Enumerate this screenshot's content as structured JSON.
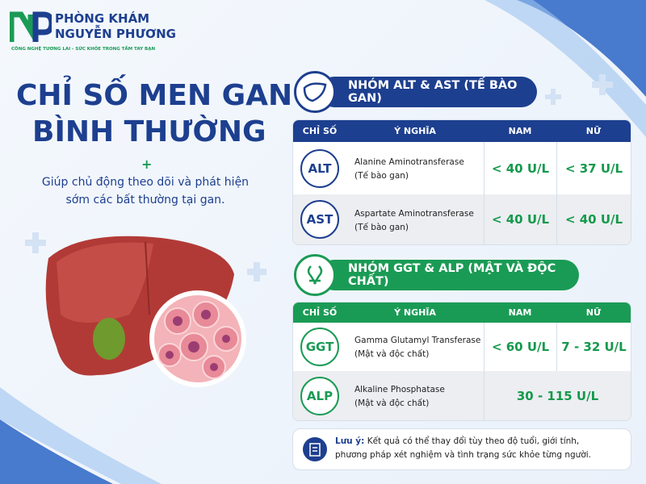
{
  "logo": {
    "line1": "PHÒNG KHÁM",
    "line2": "NGUYỄN PHƯƠNG",
    "tagline": "CÔNG NGHỆ TƯƠNG LAI - SỨC KHỎE TRONG TẦM TAY BẠN"
  },
  "title": {
    "line1": "CHỈ SỐ MEN GAN",
    "line2": "BÌNH THƯỜNG"
  },
  "subtitle": {
    "line1": "Giúp chủ động theo dõi và phát hiện",
    "line2": "sớm các bất thường tại gan."
  },
  "groups": [
    {
      "title": "NHÓM ALT & AST (TẾ BÀO GAN)",
      "headers": [
        "CHỈ SỐ",
        "Ý NGHĨA",
        "NAM",
        "NỮ"
      ],
      "rows": [
        {
          "code": "ALT",
          "name": "Alanine Aminotransferase",
          "note": "(Tế bào gan)",
          "male": "< 40 U/L",
          "female": "< 37 U/L"
        },
        {
          "code": "AST",
          "name": "Aspartate Aminotransferase",
          "note": "(Tế bào gan)",
          "male": "< 40 U/L",
          "female": "< 40 U/L"
        }
      ]
    },
    {
      "title": "NHÓM GGT & ALP (MẬT VÀ ĐỘC CHẤT)",
      "headers": [
        "CHỈ SỐ",
        "Ý NGHĨA",
        "NAM",
        "NỮ"
      ],
      "rows": [
        {
          "code": "GGT",
          "name": "Gamma Glutamyl Transferase",
          "note": "(Mật và độc chất)",
          "male": "< 60 U/L",
          "female": "7 - 32 U/L"
        },
        {
          "code": "ALP",
          "name": "Alkaline Phosphatase",
          "note": "(Mật và độc chất)",
          "both": "30 - 115 U/L"
        }
      ]
    }
  ],
  "note": {
    "label": "Lưu ý:",
    "line1": "Kết quả có thể thay đổi tùy theo độ tuổi, giới tính,",
    "line2": "phương pháp xét nghiệm và tình trạng sức khỏe từng người."
  }
}
